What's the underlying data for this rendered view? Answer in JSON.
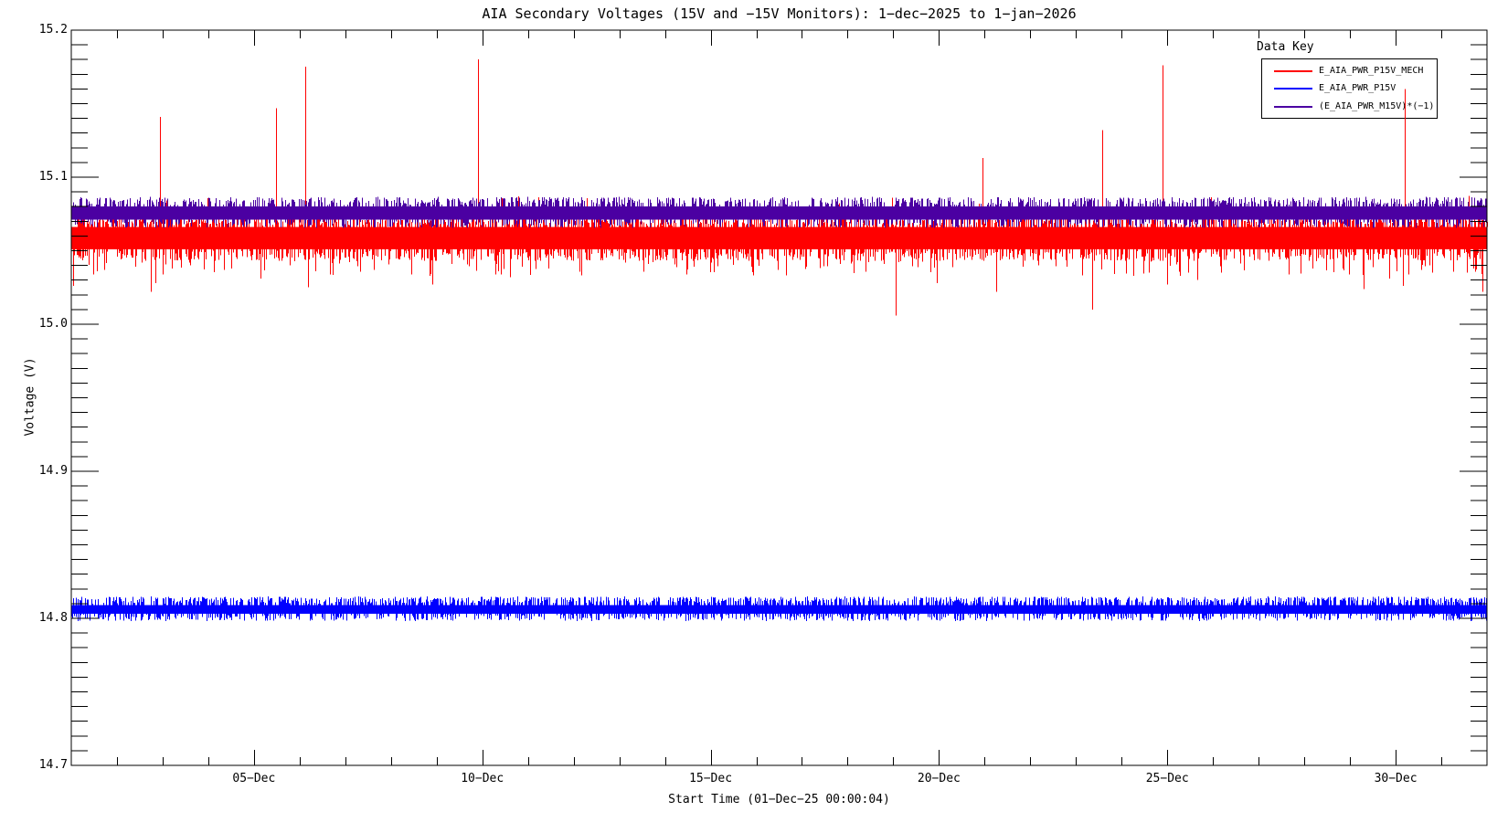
{
  "title": "AIA Secondary Voltages (15V and −15V Monitors): 1−dec−2025 to 1−jan−2026",
  "axes": {
    "y_label": "Voltage (V)",
    "x_label": "Start Time (01−Dec−25 00:00:04)",
    "y_range": [
      14.7,
      15.2
    ],
    "y_major_ticks": [
      {
        "value": 15.2,
        "label": "15.2"
      },
      {
        "value": 15.1,
        "label": "15.1"
      },
      {
        "value": 15.0,
        "label": "15.0"
      },
      {
        "value": 14.9,
        "label": "14.9"
      },
      {
        "value": 14.8,
        "label": "14.8"
      },
      {
        "value": 14.7,
        "label": "14.7"
      }
    ],
    "y_minor_step": 0.01,
    "x_range_days": [
      1,
      32
    ],
    "x_minor_step_days": 1,
    "x_major_ticks": [
      {
        "day": 5,
        "label": "05−Dec"
      },
      {
        "day": 10,
        "label": "10−Dec"
      },
      {
        "day": 15,
        "label": "15−Dec"
      },
      {
        "day": 20,
        "label": "20−Dec"
      },
      {
        "day": 25,
        "label": "25−Dec"
      },
      {
        "day": 30,
        "label": "30−Dec"
      }
    ]
  },
  "legend": {
    "title": "Data Key",
    "entries": [
      {
        "label": "E_AIA_PWR_P15V_MECH",
        "color": "#ff0000"
      },
      {
        "label": "E_AIA_PWR_P15V",
        "color": "#0000ff"
      },
      {
        "label": "(E_AIA_PWR_M15V)*(−1)",
        "color": "#4b00a2"
      }
    ]
  },
  "colors": {
    "background": "#ffffff",
    "frame": "#000000",
    "red": "#ff0000",
    "blue": "#0000ff",
    "purple": "#4b00a2"
  },
  "chart_data": {
    "type": "line",
    "title": "AIA Secondary Voltages (15V and −15V Monitors): 1−dec−2025 to 1−jan−2026",
    "xlabel": "Start Time (01−Dec−25 00:00:04)",
    "ylabel": "Voltage (V)",
    "x_unit": "day of December 2025 (1 = 01-Dec-25 00:00, 32 = 01-Jan-26)",
    "xlim": [
      1,
      32
    ],
    "ylim": [
      14.7,
      15.2
    ],
    "grid": false,
    "legend_position": "top-right",
    "seed": 1234,
    "series": [
      {
        "name": "E_AIA_PWR_P15V_MECH",
        "color": "#ff0000",
        "band_core": [
          15.051,
          15.066
        ],
        "jitter": [
          {
            "base": 15.066,
            "vmin": 15.067,
            "vmax": 15.073,
            "count": 1200
          },
          {
            "base": 15.051,
            "vmin": 15.043,
            "vmax": 15.05,
            "count": 900
          },
          {
            "base": 15.051,
            "vmin": 15.033,
            "vmax": 15.043,
            "count": 130
          },
          {
            "base": 15.066,
            "vmin": 15.079,
            "vmax": 15.088,
            "count": 25
          }
        ],
        "spikes_up": [
          [
            2.94,
            15.141
          ],
          [
            5.48,
            15.147
          ],
          [
            6.12,
            15.175
          ],
          [
            9.91,
            15.18
          ],
          [
            20.95,
            15.113
          ],
          [
            23.57,
            15.132
          ],
          [
            24.89,
            15.176
          ],
          [
            30.2,
            15.16
          ]
        ],
        "spikes_down": [
          [
            1.04,
            15.026
          ],
          [
            2.74,
            15.022
          ],
          [
            2.84,
            15.028
          ],
          [
            3.6,
            15.04
          ],
          [
            4.34,
            15.037
          ],
          [
            5.14,
            15.031
          ],
          [
            6.18,
            15.025
          ],
          [
            6.34,
            15.036
          ],
          [
            8.44,
            15.034
          ],
          [
            8.9,
            15.027
          ],
          [
            10.35,
            15.036
          ],
          [
            10.61,
            15.032
          ],
          [
            11.45,
            15.038
          ],
          [
            19.05,
            15.006
          ],
          [
            19.95,
            15.028
          ],
          [
            21.25,
            15.022
          ],
          [
            23.35,
            15.01
          ],
          [
            24.25,
            15.033
          ],
          [
            24.99,
            15.027
          ],
          [
            25.45,
            15.035
          ],
          [
            25.65,
            15.03
          ],
          [
            27.66,
            15.034
          ],
          [
            29.3,
            15.024
          ],
          [
            29.86,
            15.031
          ],
          [
            30.16,
            15.026
          ],
          [
            31.56,
            15.035
          ],
          [
            31.9,
            15.022
          ]
        ]
      },
      {
        "name": "E_AIA_PWR_P15V",
        "color": "#0000ff",
        "band_core": [
          14.803,
          14.809
        ],
        "jitter": [
          {
            "base": 14.809,
            "vmin": 14.81,
            "vmax": 14.8148,
            "count": 1400
          },
          {
            "base": 14.803,
            "vmin": 14.7982,
            "vmax": 14.8025,
            "count": 800
          }
        ],
        "spikes_up": [],
        "spikes_down": []
      },
      {
        "name": "(E_AIA_PWR_M15V)*(−1)",
        "color": "#4b00a2",
        "band_core": [
          15.071,
          15.08
        ],
        "jitter": [
          {
            "base": 15.08,
            "vmin": 15.081,
            "vmax": 15.0865,
            "count": 1100
          },
          {
            "base": 15.071,
            "vmin": 15.0655,
            "vmax": 15.07,
            "count": 650
          }
        ],
        "spikes_up": [],
        "spikes_down": []
      }
    ]
  }
}
